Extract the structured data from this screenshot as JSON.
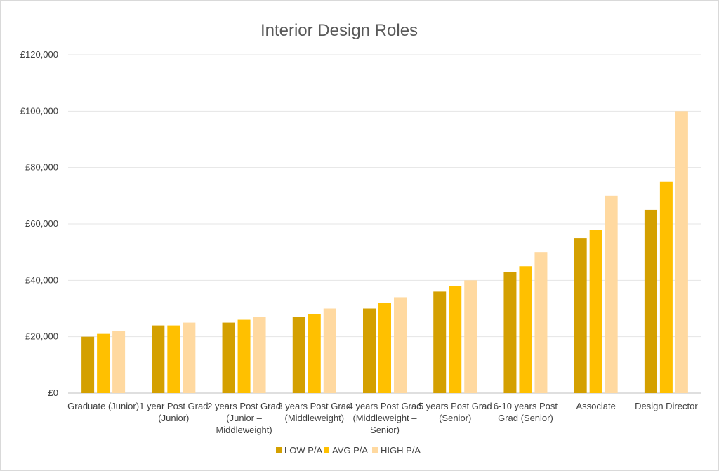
{
  "chart_data": {
    "type": "bar",
    "title": "Interior Design Roles",
    "xlabel": "",
    "ylabel": "",
    "ylim": [
      0,
      120000
    ],
    "y_ticks": [
      "£0",
      "£20,000",
      "£40,000",
      "£60,000",
      "£80,000",
      "£100,000",
      "£120,000"
    ],
    "y_tick_values": [
      0,
      20000,
      40000,
      60000,
      80000,
      100000,
      120000
    ],
    "grid": true,
    "legend_position": "bottom",
    "categories": [
      [
        "Graduate (Junior)"
      ],
      [
        "1 year Post Grad",
        "(Junior)"
      ],
      [
        "2 years Post Grad",
        "(Junior –",
        "Middleweight)"
      ],
      [
        "3 years Post Grad",
        "(Middleweight)"
      ],
      [
        "4 years Post Grad",
        "(Middleweight –",
        "Senior)"
      ],
      [
        "5 years Post Grad",
        "(Senior)"
      ],
      [
        "6-10 years Post",
        "Grad (Senior)"
      ],
      [
        "Associate"
      ],
      [
        "Design Director"
      ]
    ],
    "series": [
      {
        "name": "LOW P/A",
        "color": "#d4a000",
        "values": [
          20000,
          24000,
          25000,
          27000,
          30000,
          36000,
          43000,
          55000,
          65000
        ]
      },
      {
        "name": "AVG P/A",
        "color": "#ffc000",
        "values": [
          21000,
          24000,
          26000,
          28000,
          32000,
          38000,
          45000,
          58000,
          75000
        ]
      },
      {
        "name": "HIGH P/A",
        "color": "#ffd9a0",
        "values": [
          22000,
          25000,
          27000,
          30000,
          34000,
          40000,
          50000,
          70000,
          100000
        ]
      }
    ]
  }
}
